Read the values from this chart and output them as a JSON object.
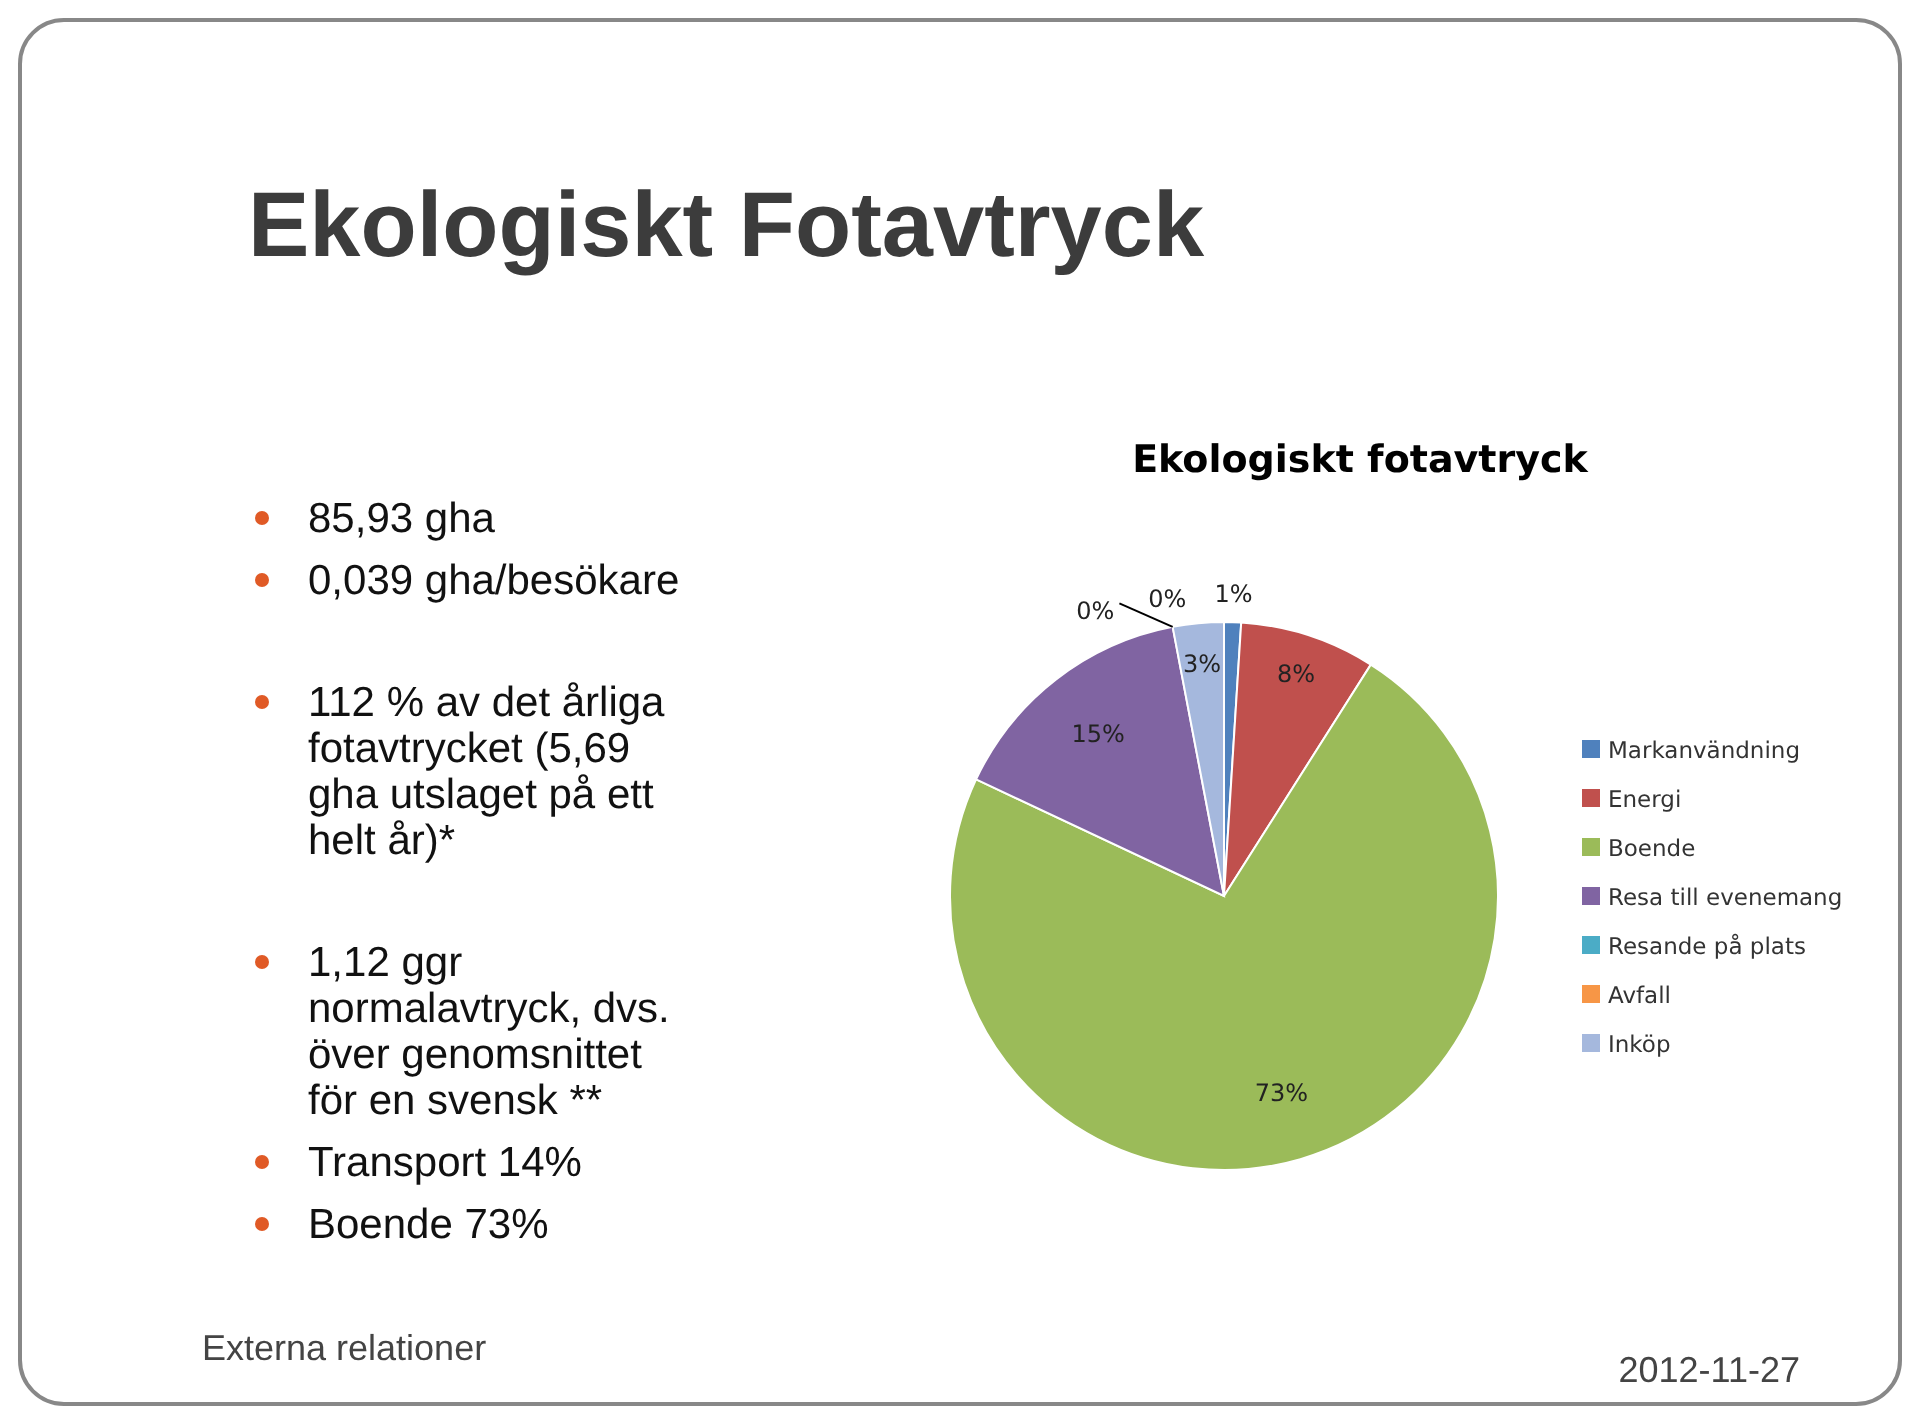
{
  "chart_data": {
    "type": "pie",
    "title": "Ekologiskt fotavtryck",
    "subtitle": "Ekologiskt Fotavtryck",
    "categories": [
      "Markanvändning",
      "Energi",
      "Boende",
      "Resa till evenemang",
      "Resande på plats",
      "Avfall",
      "Inköp"
    ],
    "values": [
      1,
      8,
      73,
      15,
      0,
      0,
      3
    ],
    "colors": [
      "#4f81bd",
      "#c0504d",
      "#9bbb59",
      "#8064a2",
      "#4bacc6",
      "#f79646",
      "#a5b8dd"
    ],
    "value_labels": [
      "1%",
      "8%",
      "73%",
      "15%",
      "0%",
      "0%",
      "3%"
    ],
    "legend": "right",
    "annotations": [
      "85,93 gha",
      "0,039 gha/besökare",
      "112 % av det årliga fotavtrycket (5,69 gha utslaget på ett helt år)*",
      "1,12 ggr normalavtryck, dvs. över genomsnittet för en svensk **",
      "Transport 14%",
      "Boende 73%",
      "Externa relationer",
      "2012-11-27"
    ]
  }
}
